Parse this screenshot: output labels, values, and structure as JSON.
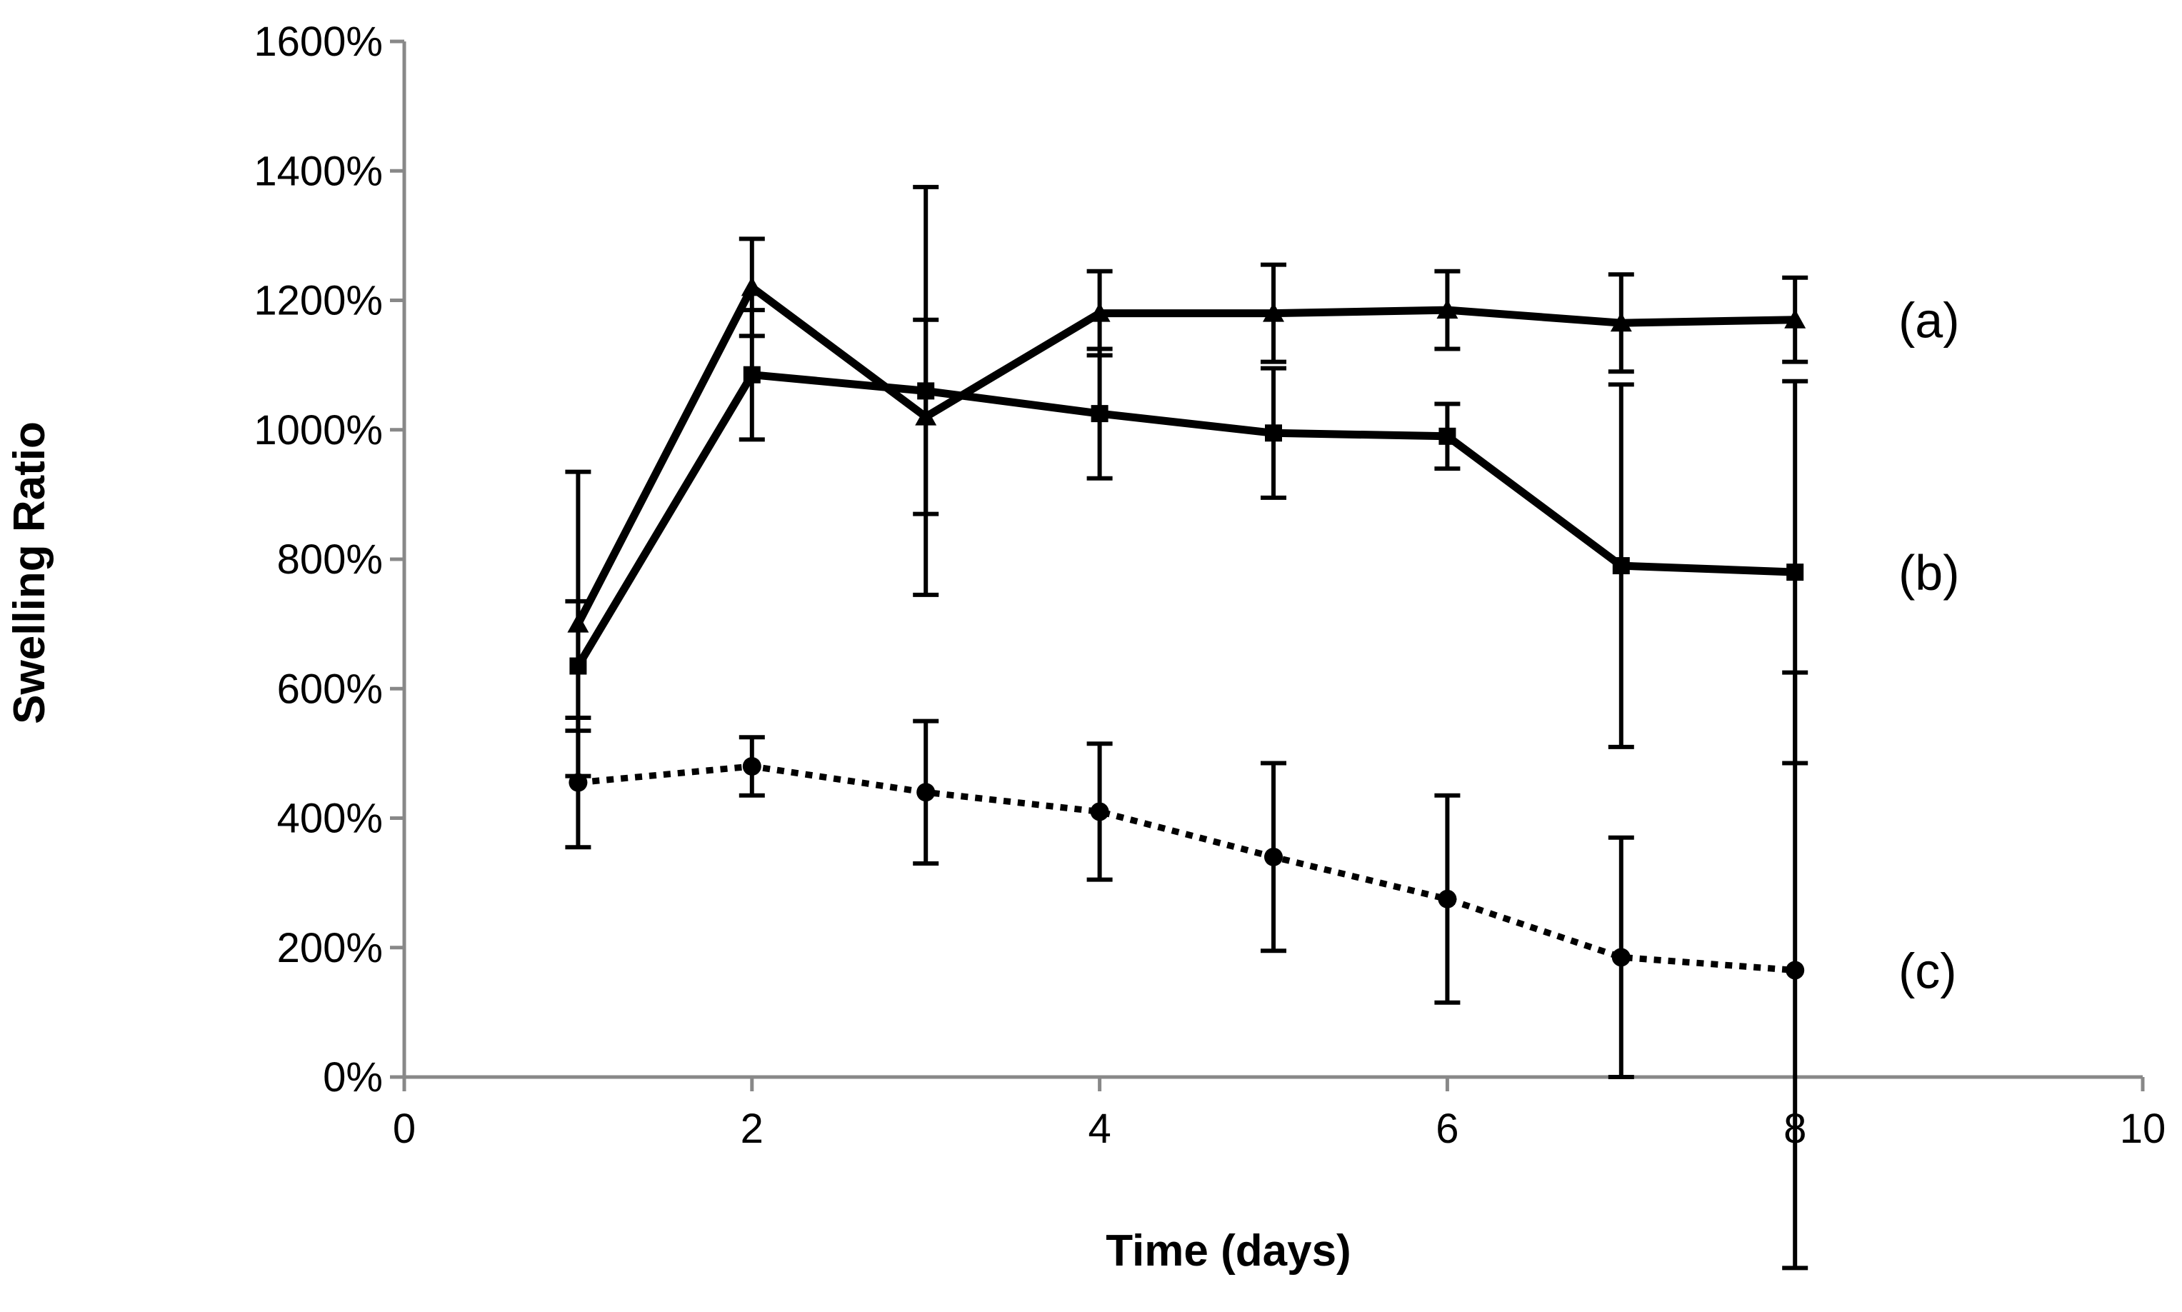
{
  "chart_data": {
    "type": "line",
    "title": "",
    "xlabel": "Time (days)",
    "ylabel": "Swelling Ratio",
    "xlim": [
      0,
      10
    ],
    "ylim": [
      0,
      1600
    ],
    "x_ticks": [
      0,
      2,
      4,
      6,
      8,
      10
    ],
    "x_tick_labels": [
      "0",
      "2",
      "4",
      "6",
      "8",
      "10"
    ],
    "y_ticks": [
      0,
      200,
      400,
      600,
      800,
      1000,
      1200,
      1400,
      1600
    ],
    "y_tick_labels": [
      "0%",
      "200%",
      "400%",
      "600%",
      "800%",
      "1000%",
      "1200%",
      "1400%",
      "1600%"
    ],
    "grid": false,
    "legend": "none",
    "x": [
      1,
      2,
      3,
      4,
      5,
      6,
      7,
      8
    ],
    "series": [
      {
        "name": "(a)",
        "style": "solid",
        "marker": "triangle",
        "values": [
          700,
          1220,
          1020,
          1180,
          1180,
          1185,
          1165,
          1170
        ],
        "errors": [
          235,
          75,
          150,
          65,
          75,
          60,
          75,
          65
        ]
      },
      {
        "name": "(b)",
        "style": "solid",
        "marker": "square",
        "values": [
          635,
          1085,
          1060,
          1025,
          995,
          990,
          790,
          780
        ],
        "errors": [
          100,
          100,
          315,
          100,
          100,
          50,
          280,
          295
        ]
      },
      {
        "name": "(c)",
        "style": "dotted",
        "marker": "circle",
        "values": [
          455,
          480,
          440,
          410,
          340,
          275,
          185,
          165
        ],
        "errors": [
          100,
          45,
          110,
          105,
          145,
          160,
          185,
          460
        ]
      }
    ],
    "colors": {
      "line": "#000000",
      "axis": "#888888"
    }
  }
}
